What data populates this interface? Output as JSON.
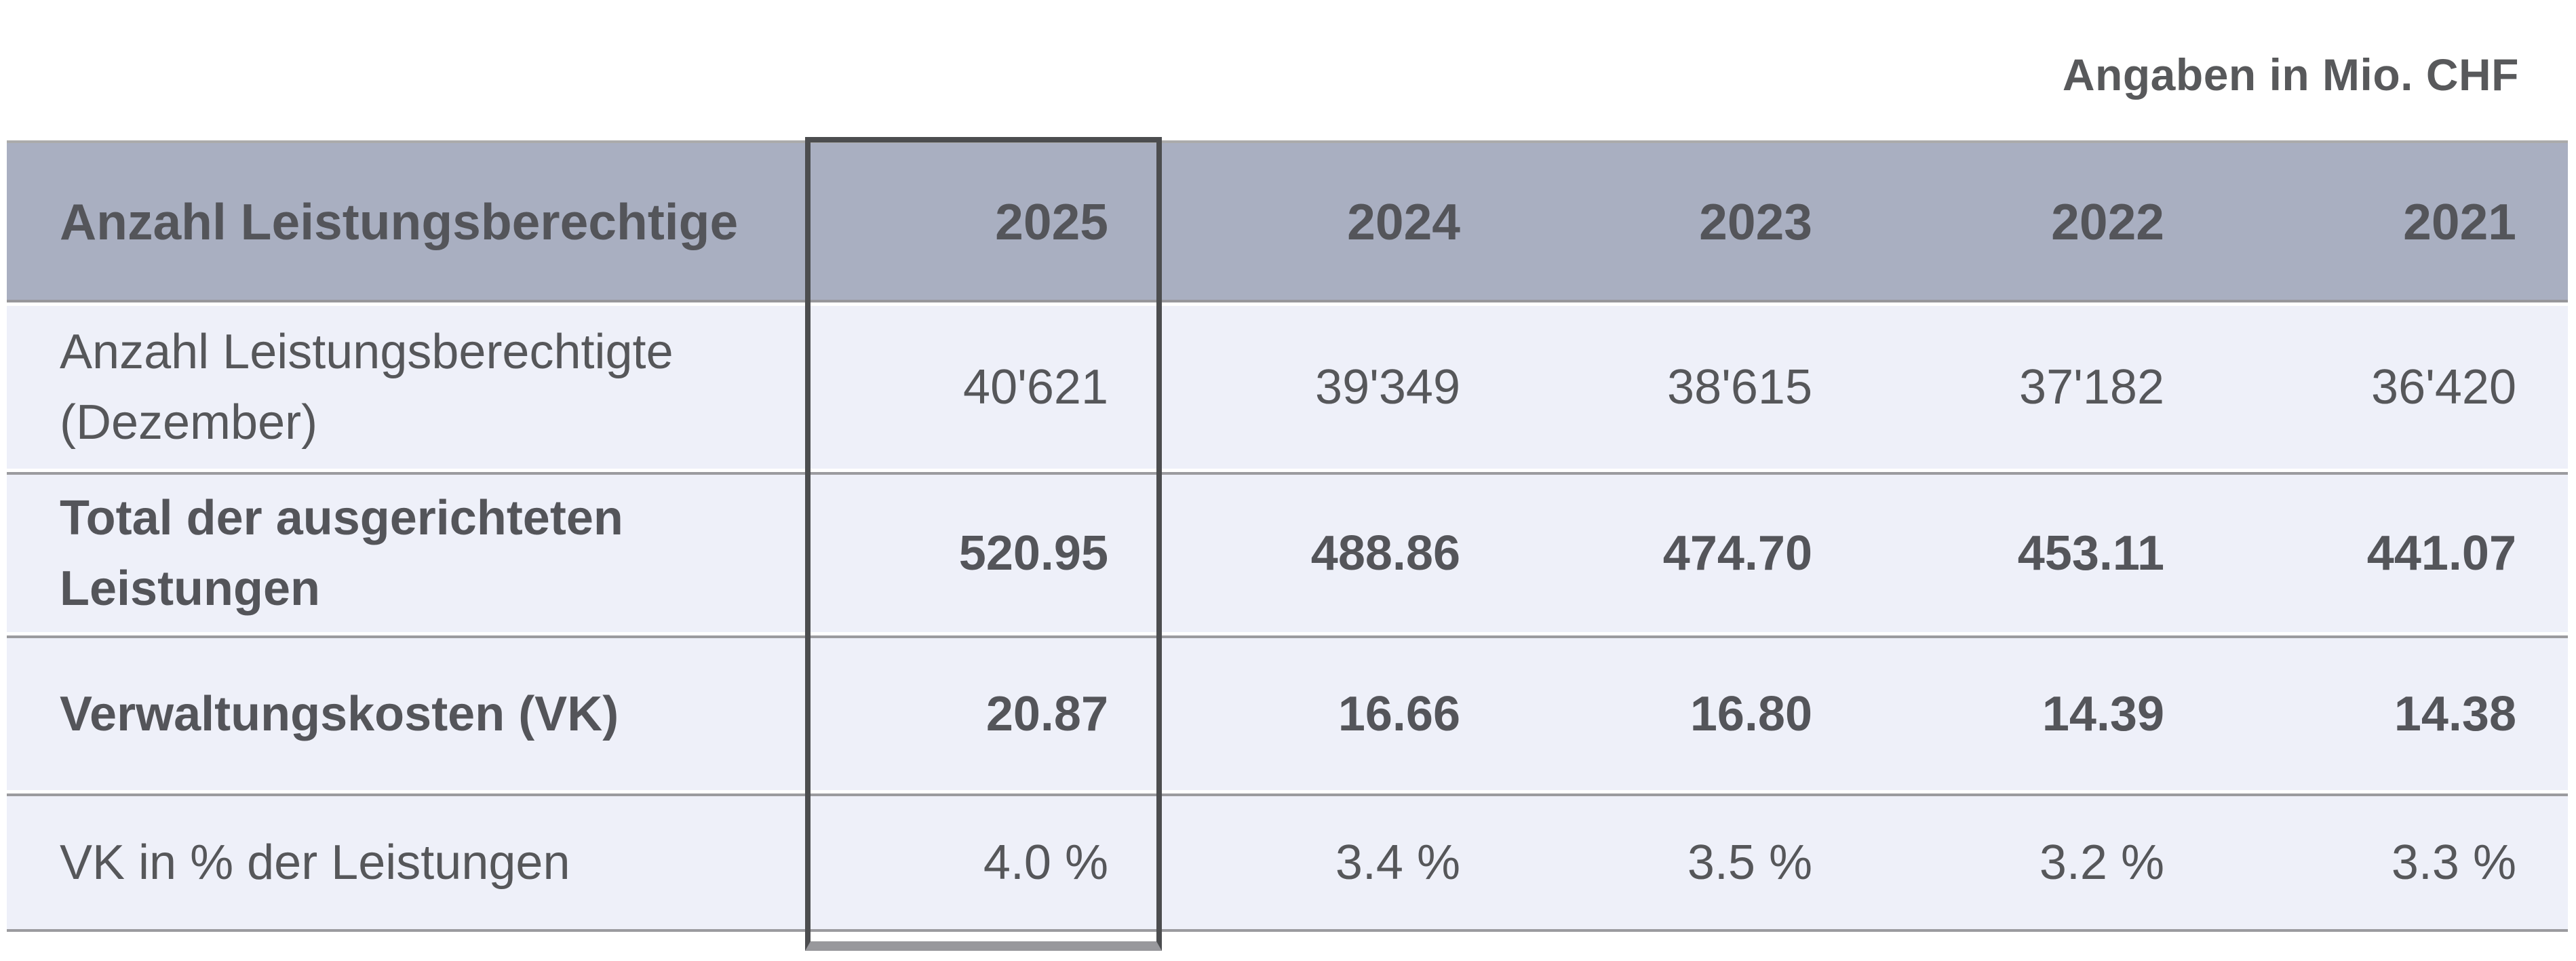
{
  "unit_note": "Angaben in Mio. CHF",
  "table": {
    "header": {
      "label": "Anzahl Leistungsberechtige",
      "years": [
        "2025",
        "2024",
        "2023",
        "2022",
        "2021"
      ]
    },
    "rows": [
      {
        "label": "Anzahl Leistungsberechtigte (Dezember)",
        "bold": false,
        "values": [
          "40'621",
          "39'349",
          "38'615",
          "37'182",
          "36'420"
        ]
      },
      {
        "label": "Total der ausgerichteten Leistungen",
        "bold": true,
        "values": [
          "520.95",
          "488.86",
          "474.70",
          "453.11",
          "441.07"
        ]
      },
      {
        "label": "Verwaltungskosten (VK)",
        "bold": true,
        "values": [
          "20.87",
          "16.66",
          "16.80",
          "14.39",
          "14.38"
        ]
      },
      {
        "label": "VK in % der Leistungen",
        "bold": false,
        "values": [
          "4.0 %",
          "3.4 %",
          "3.5 %",
          "3.2 %",
          "3.3 %"
        ]
      }
    ],
    "highlighted_year": "2025"
  },
  "chart_data": {
    "type": "table",
    "title": "Anzahl Leistungsberechtige",
    "unit": "Angaben in Mio. CHF",
    "columns": [
      "2025",
      "2024",
      "2023",
      "2022",
      "2021"
    ],
    "series": [
      {
        "name": "Anzahl Leistungsberechtigte (Dezember)",
        "values": [
          40621,
          39349,
          38615,
          37182,
          36420
        ]
      },
      {
        "name": "Total der ausgerichteten Leistungen",
        "values": [
          520.95,
          488.86,
          474.7,
          453.11,
          441.07
        ]
      },
      {
        "name": "Verwaltungskosten (VK)",
        "values": [
          20.87,
          16.66,
          16.8,
          14.39,
          14.38
        ]
      },
      {
        "name": "VK in % der Leistungen",
        "values": [
          4.0,
          3.4,
          3.5,
          3.2,
          3.3
        ]
      }
    ],
    "highlighted_column": "2025"
  },
  "colors": {
    "header_bg": "#a9afc1",
    "row_bg": "#eef0f9",
    "text": "#56575a",
    "separator": "#9b9b9f",
    "highlight_border": "#4c4d4f",
    "highlight_bottom": "#98989c"
  }
}
